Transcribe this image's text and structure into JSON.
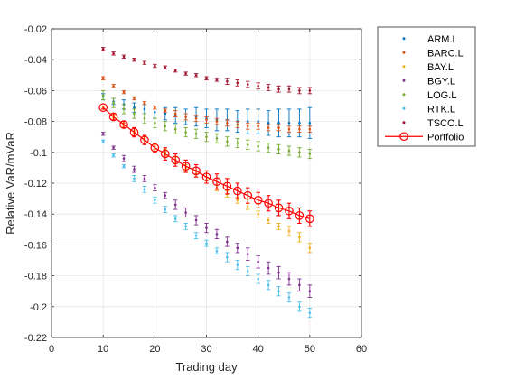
{
  "chart_data": {
    "type": "scatter",
    "xlabel": "Trading day",
    "ylabel": "Relative VaR/mVaR",
    "xlim": [
      0,
      60
    ],
    "ylim": [
      -0.22,
      -0.02
    ],
    "xticks": [
      0,
      10,
      20,
      30,
      40,
      50,
      60
    ],
    "yticks": [
      -0.22,
      -0.2,
      -0.18,
      -0.16,
      -0.14,
      -0.12,
      -0.1,
      -0.08,
      -0.06,
      -0.04,
      -0.02
    ],
    "xtick_labels": [
      "0",
      "10",
      "20",
      "30",
      "40",
      "50",
      "60"
    ],
    "ytick_labels": [
      "-0.22",
      "-0.2",
      "-0.18",
      "-0.16",
      "-0.14",
      "-0.12",
      "-0.1",
      "-0.08",
      "-0.06",
      "-0.04",
      "-0.02"
    ],
    "grid": true,
    "legend_position": "outside-top-right",
    "x": [
      10,
      12,
      14,
      16,
      18,
      20,
      22,
      24,
      26,
      28,
      30,
      32,
      34,
      36,
      38,
      40,
      42,
      44,
      46,
      48,
      50
    ],
    "series": [
      {
        "name": "ARM.L",
        "color": "#0072BD",
        "marker": "point",
        "values": [
          -0.064,
          -0.067,
          -0.069,
          -0.071,
          -0.072,
          -0.074,
          -0.075,
          -0.076,
          -0.077,
          -0.077,
          -0.078,
          -0.079,
          -0.079,
          -0.08,
          -0.08,
          -0.08,
          -0.081,
          -0.081,
          -0.081,
          -0.081,
          -0.081
        ],
        "errors": [
          0.002,
          0.002,
          0.003,
          0.003,
          0.003,
          0.004,
          0.004,
          0.005,
          0.005,
          0.006,
          0.006,
          0.007,
          0.007,
          0.007,
          0.008,
          0.008,
          0.008,
          0.009,
          0.009,
          0.009,
          0.01
        ]
      },
      {
        "name": "BARC.L",
        "color": "#D95319",
        "marker": "point",
        "values": [
          -0.052,
          -0.057,
          -0.061,
          -0.065,
          -0.068,
          -0.071,
          -0.073,
          -0.075,
          -0.077,
          -0.078,
          -0.079,
          -0.08,
          -0.081,
          -0.082,
          -0.083,
          -0.083,
          -0.084,
          -0.084,
          -0.085,
          -0.085,
          -0.085
        ],
        "errors": [
          0.001,
          0.001,
          0.001,
          0.001,
          0.001,
          0.001,
          0.001,
          0.002,
          0.002,
          0.002,
          0.002,
          0.002,
          0.002,
          0.002,
          0.002,
          0.002,
          0.002,
          0.002,
          0.002,
          0.002,
          0.002
        ]
      },
      {
        "name": "BAY.L",
        "color": "#EDB120",
        "marker": "point",
        "values": [
          -0.071,
          -0.077,
          -0.082,
          -0.087,
          -0.091,
          -0.096,
          -0.1,
          -0.105,
          -0.11,
          -0.114,
          -0.118,
          -0.123,
          -0.127,
          -0.131,
          -0.135,
          -0.14,
          -0.144,
          -0.148,
          -0.151,
          -0.155,
          -0.162
        ],
        "errors": [
          0.001,
          0.001,
          0.001,
          0.001,
          0.001,
          0.002,
          0.002,
          0.002,
          0.002,
          0.002,
          0.002,
          0.002,
          0.002,
          0.002,
          0.002,
          0.002,
          0.002,
          0.002,
          0.003,
          0.003,
          0.003
        ]
      },
      {
        "name": "BGY.L",
        "color": "#7E2F8E",
        "marker": "point",
        "values": [
          -0.088,
          -0.097,
          -0.104,
          -0.111,
          -0.117,
          -0.123,
          -0.128,
          -0.134,
          -0.139,
          -0.144,
          -0.149,
          -0.153,
          -0.158,
          -0.162,
          -0.166,
          -0.171,
          -0.175,
          -0.178,
          -0.182,
          -0.186,
          -0.19
        ],
        "errors": [
          0.001,
          0.001,
          0.002,
          0.002,
          0.002,
          0.002,
          0.002,
          0.003,
          0.003,
          0.003,
          0.003,
          0.003,
          0.003,
          0.003,
          0.004,
          0.004,
          0.004,
          0.004,
          0.004,
          0.004,
          0.004
        ]
      },
      {
        "name": "LOG.L",
        "color": "#77AC30",
        "marker": "point",
        "values": [
          -0.063,
          -0.068,
          -0.072,
          -0.075,
          -0.078,
          -0.081,
          -0.083,
          -0.085,
          -0.087,
          -0.088,
          -0.09,
          -0.091,
          -0.093,
          -0.094,
          -0.095,
          -0.096,
          -0.097,
          -0.098,
          -0.099,
          -0.1,
          -0.101
        ],
        "errors": [
          0.003,
          0.003,
          0.003,
          0.003,
          0.003,
          0.003,
          0.003,
          0.003,
          0.003,
          0.003,
          0.003,
          0.003,
          0.003,
          0.003,
          0.003,
          0.003,
          0.003,
          0.003,
          0.003,
          0.003,
          0.003
        ]
      },
      {
        "name": "RTK.L",
        "color": "#4DBEEE",
        "marker": "point",
        "values": [
          -0.093,
          -0.102,
          -0.109,
          -0.117,
          -0.124,
          -0.131,
          -0.137,
          -0.143,
          -0.148,
          -0.154,
          -0.159,
          -0.164,
          -0.168,
          -0.173,
          -0.177,
          -0.182,
          -0.186,
          -0.19,
          -0.194,
          -0.2,
          -0.204
        ],
        "errors": [
          0.001,
          0.001,
          0.001,
          0.002,
          0.002,
          0.002,
          0.002,
          0.002,
          0.002,
          0.002,
          0.002,
          0.002,
          0.003,
          0.003,
          0.003,
          0.003,
          0.003,
          0.003,
          0.003,
          0.003,
          0.003
        ]
      },
      {
        "name": "TSCO.L",
        "color": "#A2142F",
        "marker": "point",
        "values": [
          -0.033,
          -0.036,
          -0.038,
          -0.04,
          -0.042,
          -0.044,
          -0.045,
          -0.047,
          -0.049,
          -0.05,
          -0.052,
          -0.053,
          -0.054,
          -0.055,
          -0.056,
          -0.057,
          -0.058,
          -0.059,
          -0.059,
          -0.06,
          -0.06
        ],
        "errors": [
          0.001,
          0.001,
          0.001,
          0.001,
          0.001,
          0.001,
          0.001,
          0.001,
          0.001,
          0.001,
          0.001,
          0.001,
          0.002,
          0.002,
          0.002,
          0.002,
          0.002,
          0.002,
          0.002,
          0.002,
          0.002
        ]
      },
      {
        "name": "Portfolio",
        "color": "#FF0000",
        "marker": "circle-line",
        "values": [
          -0.071,
          -0.077,
          -0.082,
          -0.087,
          -0.092,
          -0.097,
          -0.101,
          -0.105,
          -0.109,
          -0.112,
          -0.116,
          -0.119,
          -0.122,
          -0.125,
          -0.128,
          -0.131,
          -0.133,
          -0.136,
          -0.138,
          -0.141,
          -0.143
        ],
        "errors": [
          0.001,
          0.002,
          0.002,
          0.003,
          0.003,
          0.003,
          0.004,
          0.004,
          0.004,
          0.004,
          0.004,
          0.005,
          0.005,
          0.005,
          0.005,
          0.005,
          0.005,
          0.005,
          0.005,
          0.005,
          0.005
        ]
      }
    ]
  }
}
